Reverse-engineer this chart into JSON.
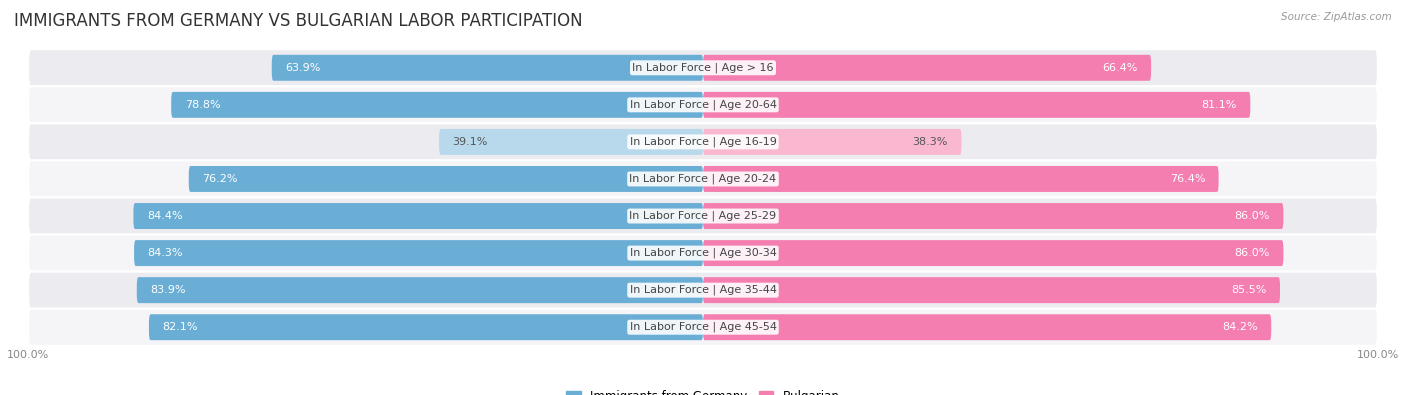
{
  "title": "IMMIGRANTS FROM GERMANY VS BULGARIAN LABOR PARTICIPATION",
  "source": "Source: ZipAtlas.com",
  "categories": [
    "In Labor Force | Age > 16",
    "In Labor Force | Age 20-64",
    "In Labor Force | Age 16-19",
    "In Labor Force | Age 20-24",
    "In Labor Force | Age 25-29",
    "In Labor Force | Age 30-34",
    "In Labor Force | Age 35-44",
    "In Labor Force | Age 45-54"
  ],
  "germany_values": [
    63.9,
    78.8,
    39.1,
    76.2,
    84.4,
    84.3,
    83.9,
    82.1
  ],
  "bulgarian_values": [
    66.4,
    81.1,
    38.3,
    76.4,
    86.0,
    86.0,
    85.5,
    84.2
  ],
  "germany_color": "#6aaed6",
  "germany_color_light": "#b8d9ec",
  "bulgarian_color": "#f47eb0",
  "bulgarian_color_light": "#f9b8d0",
  "bg_row_color": "#ebebf0",
  "bg_row_color_alt": "#f5f5f8",
  "max_value": 100.0,
  "legend_germany": "Immigrants from Germany",
  "legend_bulgarian": "Bulgarian",
  "title_fontsize": 12,
  "label_fontsize": 8,
  "val_fontsize": 8,
  "bar_height": 0.7,
  "background_color": "#ffffff"
}
